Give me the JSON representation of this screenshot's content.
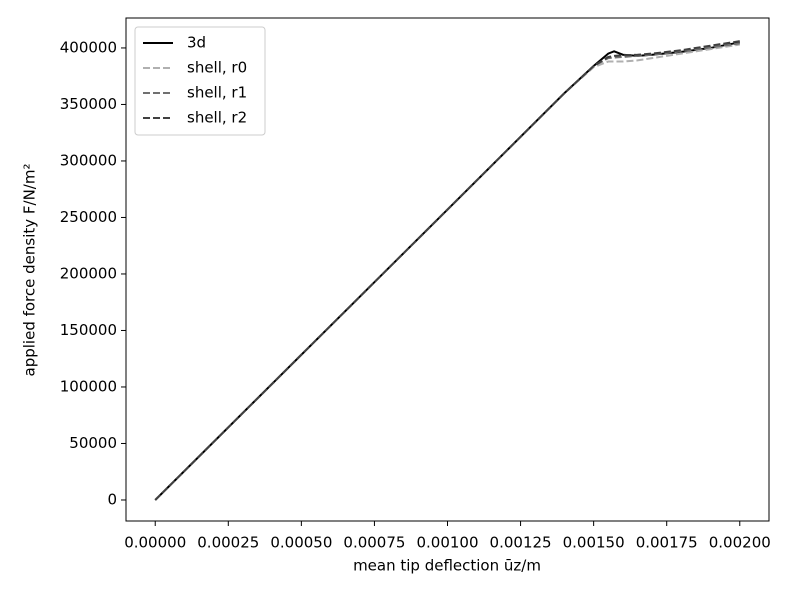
{
  "chart_data": {
    "type": "line",
    "xlabel": "mean tip deflection ūz/m",
    "ylabel": "applied force density F/N/m²",
    "x": [
      0,
      0.0005,
      0.001,
      0.0014,
      0.0015,
      0.00155,
      0.00157,
      0.0016,
      0.00165,
      0.0017,
      0.0018,
      0.0019,
      0.002
    ],
    "series": [
      {
        "name": "3d",
        "color": "#000000",
        "linestyle": "solid",
        "values": [
          0,
          128500,
          257000,
          360000,
          384000,
          395000,
          397000,
          394000,
          393000,
          394000,
          396500,
          400000,
          405000
        ]
      },
      {
        "name": "shell, r0",
        "color": "#b0b0b0",
        "linestyle": "dashed",
        "values": [
          0,
          128500,
          257000,
          360000,
          383000,
          388000,
          388000,
          388000,
          389000,
          391000,
          395000,
          399000,
          403000
        ]
      },
      {
        "name": "shell, r1",
        "color": "#707070",
        "linestyle": "dashed",
        "values": [
          0,
          128500,
          257000,
          360000,
          384000,
          391000,
          391500,
          392000,
          393000,
          394000,
          397000,
          400500,
          404000
        ]
      },
      {
        "name": "shell, r2",
        "color": "#404040",
        "linestyle": "dashed",
        "values": [
          0,
          128500,
          257000,
          360000,
          384000,
          392000,
          393000,
          393500,
          394000,
          395000,
          398000,
          402000,
          406000
        ]
      }
    ],
    "xlim": [
      -0.0001,
      0.0021
    ],
    "ylim": [
      -18600,
      426500
    ],
    "xticks": [
      {
        "value": 0,
        "label": "0.00000"
      },
      {
        "value": 0.00025,
        "label": "0.00025"
      },
      {
        "value": 0.0005,
        "label": "0.00050"
      },
      {
        "value": 0.00075,
        "label": "0.00075"
      },
      {
        "value": 0.001,
        "label": "0.00100"
      },
      {
        "value": 0.00125,
        "label": "0.00125"
      },
      {
        "value": 0.0015,
        "label": "0.00150"
      },
      {
        "value": 0.00175,
        "label": "0.00175"
      },
      {
        "value": 0.002,
        "label": "0.00200"
      }
    ],
    "yticks": [
      0,
      50000,
      100000,
      150000,
      200000,
      250000,
      300000,
      350000,
      400000
    ],
    "grid": false,
    "legend": "upper left"
  }
}
